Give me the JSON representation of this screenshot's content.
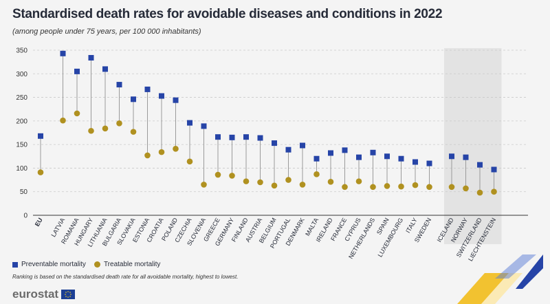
{
  "header": {
    "title": "Standardised death rates for avoidable diseases and conditions in 2022",
    "subtitle": "(among people under 75 years, per 100 000 inhabitants)"
  },
  "legend": {
    "preventable": "Preventable mortality",
    "treatable": "Treatable mortality"
  },
  "footnote": "Ranking is based on the standardised death rate for all avoidable mortality, highest to lowest.",
  "brand": {
    "name": "eurostat"
  },
  "colors": {
    "preventable": "#2644a7",
    "treatable": "#b09120",
    "connector": "#9a9a9a",
    "shade": "#e3e3e3"
  },
  "chart_data": {
    "type": "scatter",
    "title": "Standardised death rates for avoidable diseases and conditions in 2022",
    "ylim": [
      0,
      350
    ],
    "yticks": [
      0,
      50,
      100,
      150,
      200,
      250,
      300,
      350
    ],
    "categories": [
      "EU",
      "LATVIA",
      "ROMANIA",
      "HUNGARY",
      "LITHUANIA",
      "BULGARIA",
      "SLOVAKIA",
      "ESTONIA",
      "CROATIA",
      "POLAND",
      "CZECHIA",
      "SLOVENIA",
      "GREECE",
      "GERMANY",
      "FINLAND",
      "AUSTRIA",
      "BELGIUM",
      "PORTUGAL",
      "DENMARK",
      "MALTA",
      "IRELAND",
      "FRANCE",
      "CYPRUS",
      "NETHERLANDS",
      "SPAIN",
      "LUXEMBOURG",
      "ITALY",
      "SWEDEN",
      "ICELAND",
      "NORWAY",
      "SWITZERLAND",
      "LIECHTENSTEIN"
    ],
    "groups": [
      1,
      2,
      2,
      2,
      2,
      2,
      2,
      2,
      2,
      2,
      2,
      2,
      2,
      2,
      2,
      2,
      2,
      2,
      2,
      2,
      2,
      2,
      2,
      2,
      2,
      2,
      2,
      2,
      3,
      3,
      3,
      3
    ],
    "series": [
      {
        "name": "Preventable mortality",
        "marker": "square",
        "values": [
          168,
          343,
          305,
          334,
          310,
          277,
          246,
          267,
          253,
          244,
          196,
          189,
          166,
          165,
          166,
          164,
          153,
          139,
          148,
          120,
          132,
          138,
          123,
          133,
          125,
          120,
          113,
          110,
          125,
          123,
          107,
          97
        ]
      },
      {
        "name": "Treatable mortality",
        "marker": "circle",
        "values": [
          91,
          201,
          216,
          179,
          184,
          195,
          177,
          127,
          134,
          141,
          114,
          65,
          86,
          84,
          72,
          70,
          63,
          75,
          65,
          87,
          71,
          60,
          72,
          60,
          62,
          61,
          64,
          60,
          60,
          57,
          48,
          50
        ]
      }
    ]
  }
}
